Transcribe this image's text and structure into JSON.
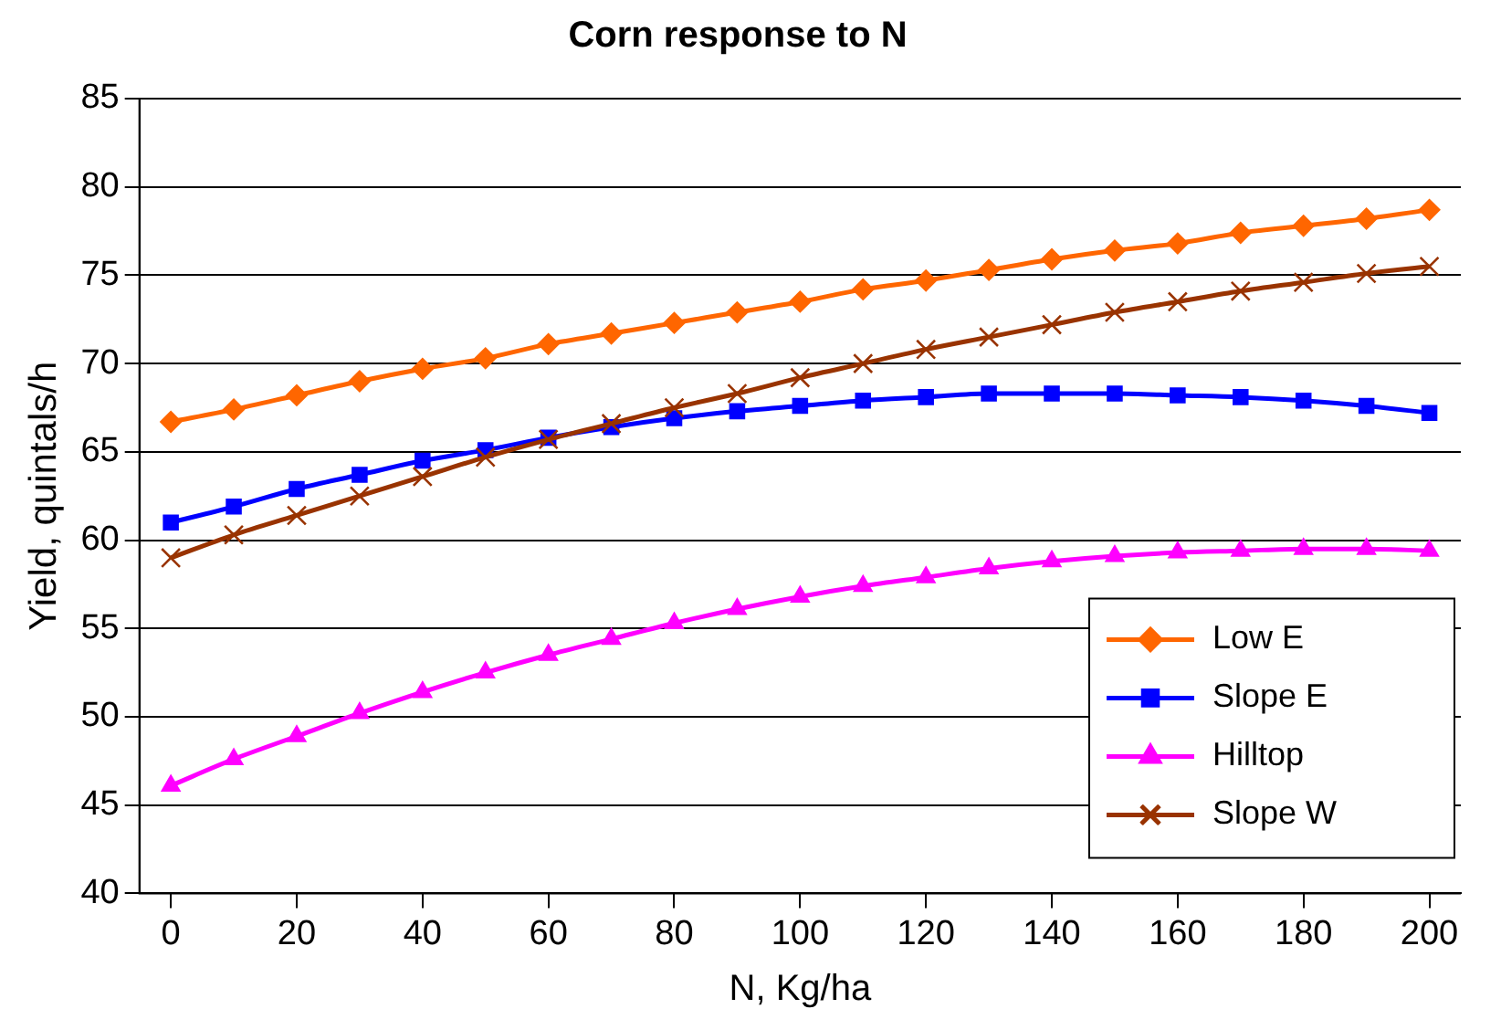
{
  "chart_data": {
    "type": "line",
    "title": "Corn response to N",
    "xlabel": "N, Kg/ha",
    "ylabel": "Yield, quintals/h",
    "x": [
      0,
      10,
      20,
      30,
      40,
      50,
      60,
      70,
      80,
      90,
      100,
      110,
      120,
      130,
      140,
      150,
      160,
      170,
      180,
      190,
      200
    ],
    "xlim": [
      -5,
      205
    ],
    "xticks": [
      0,
      20,
      40,
      60,
      80,
      100,
      120,
      140,
      160,
      180,
      200
    ],
    "ylim": [
      40,
      85
    ],
    "yticks": [
      40,
      45,
      50,
      55,
      60,
      65,
      70,
      75,
      80,
      85
    ],
    "grid": "y",
    "legend": "bottom right",
    "series": [
      {
        "name": "Low E",
        "color": "#ff6600",
        "marker": "diamond",
        "values": [
          66.7,
          67.4,
          68.2,
          69.0,
          69.7,
          70.3,
          71.1,
          71.7,
          72.3,
          72.9,
          73.5,
          74.2,
          74.7,
          75.3,
          75.9,
          76.4,
          76.8,
          77.4,
          77.8,
          78.2,
          78.7
        ]
      },
      {
        "name": "Slope E",
        "color": "#0000ff",
        "marker": "square",
        "values": [
          61.0,
          61.9,
          62.9,
          63.7,
          64.5,
          65.1,
          65.8,
          66.4,
          66.9,
          67.3,
          67.6,
          67.9,
          68.1,
          68.3,
          68.3,
          68.3,
          68.2,
          68.1,
          67.9,
          67.6,
          67.2
        ]
      },
      {
        "name": "Hilltop",
        "color": "#ff00ff",
        "marker": "triangle",
        "values": [
          46.1,
          47.6,
          48.9,
          50.2,
          51.4,
          52.5,
          53.5,
          54.4,
          55.3,
          56.1,
          56.8,
          57.4,
          57.9,
          58.4,
          58.8,
          59.1,
          59.3,
          59.4,
          59.5,
          59.5,
          59.4
        ]
      },
      {
        "name": "Slope W",
        "color": "#993300",
        "marker": "cross",
        "values": [
          59.0,
          60.3,
          61.4,
          62.5,
          63.6,
          64.7,
          65.7,
          66.6,
          67.5,
          68.3,
          69.2,
          70.0,
          70.8,
          71.5,
          72.2,
          72.9,
          73.5,
          74.1,
          74.6,
          75.1,
          75.5
        ]
      }
    ]
  }
}
